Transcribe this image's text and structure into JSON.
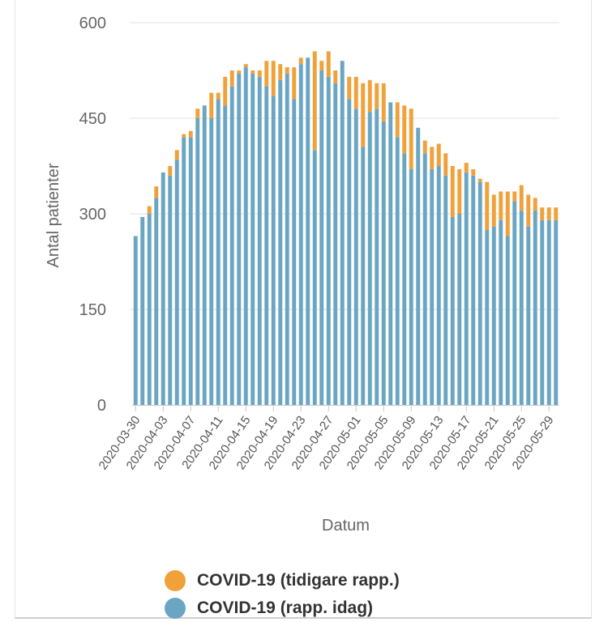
{
  "chart_data": {
    "type": "bar",
    "stacked": true,
    "title": "",
    "xlabel": "Datum",
    "ylabel": "Antal patienter",
    "ylim": [
      0,
      600
    ],
    "yticks": [
      0,
      150,
      300,
      450,
      600
    ],
    "grid": true,
    "legend_position": "bottom",
    "x_tick_labels": [
      "2020-03-30",
      "2020-04-03",
      "2020-04-07",
      "2020-04-11",
      "2020-04-15",
      "2020-04-19",
      "2020-04-23",
      "2020-04-27",
      "2020-05-01",
      "2020-05-05",
      "2020-05-09",
      "2020-05-13",
      "2020-05-17",
      "2020-05-21",
      "2020-05-25",
      "2020-05-29"
    ],
    "categories": [
      "2020-03-30",
      "2020-03-31",
      "2020-04-01",
      "2020-04-02",
      "2020-04-03",
      "2020-04-04",
      "2020-04-05",
      "2020-04-06",
      "2020-04-07",
      "2020-04-08",
      "2020-04-09",
      "2020-04-10",
      "2020-04-11",
      "2020-04-12",
      "2020-04-13",
      "2020-04-14",
      "2020-04-15",
      "2020-04-16",
      "2020-04-17",
      "2020-04-18",
      "2020-04-19",
      "2020-04-20",
      "2020-04-21",
      "2020-04-22",
      "2020-04-23",
      "2020-04-24",
      "2020-04-25",
      "2020-04-26",
      "2020-04-27",
      "2020-04-28",
      "2020-04-29",
      "2020-04-30",
      "2020-05-01",
      "2020-05-02",
      "2020-05-03",
      "2020-05-04",
      "2020-05-05",
      "2020-05-06",
      "2020-05-07",
      "2020-05-08",
      "2020-05-09",
      "2020-05-10",
      "2020-05-11",
      "2020-05-12",
      "2020-05-13",
      "2020-05-14",
      "2020-05-15",
      "2020-05-16",
      "2020-05-17",
      "2020-05-18",
      "2020-05-19",
      "2020-05-20",
      "2020-05-21",
      "2020-05-22",
      "2020-05-23",
      "2020-05-24",
      "2020-05-25",
      "2020-05-26",
      "2020-05-27",
      "2020-05-28",
      "2020-05-29",
      "2020-05-30"
    ],
    "series": [
      {
        "name": "COVID-19 (rapp. idag)",
        "color": "#6aa6c4",
        "values": [
          265,
          295,
          300,
          325,
          365,
          360,
          385,
          420,
          420,
          450,
          470,
          450,
          480,
          470,
          500,
          520,
          530,
          520,
          515,
          500,
          485,
          510,
          520,
          480,
          535,
          545,
          400,
          525,
          515,
          505,
          540,
          480,
          465,
          405,
          460,
          465,
          445,
          475,
          420,
          395,
          370,
          435,
          395,
          370,
          375,
          360,
          295,
          300,
          365,
          360,
          350,
          275,
          280,
          290,
          265,
          320,
          305,
          280,
          305,
          290,
          290,
          290
        ]
      },
      {
        "name": "COVID-19 (tidigare rapp.)",
        "color": "#f0a13a",
        "values": [
          0,
          0,
          12,
          18,
          0,
          15,
          15,
          5,
          10,
          15,
          0,
          40,
          10,
          45,
          25,
          5,
          5,
          5,
          10,
          40,
          55,
          25,
          10,
          50,
          10,
          0,
          155,
          15,
          40,
          20,
          0,
          35,
          50,
          100,
          50,
          40,
          60,
          0,
          55,
          75,
          95,
          0,
          20,
          35,
          35,
          35,
          80,
          70,
          15,
          10,
          5,
          75,
          50,
          45,
          70,
          15,
          40,
          50,
          20,
          20,
          20,
          20
        ]
      }
    ]
  }
}
